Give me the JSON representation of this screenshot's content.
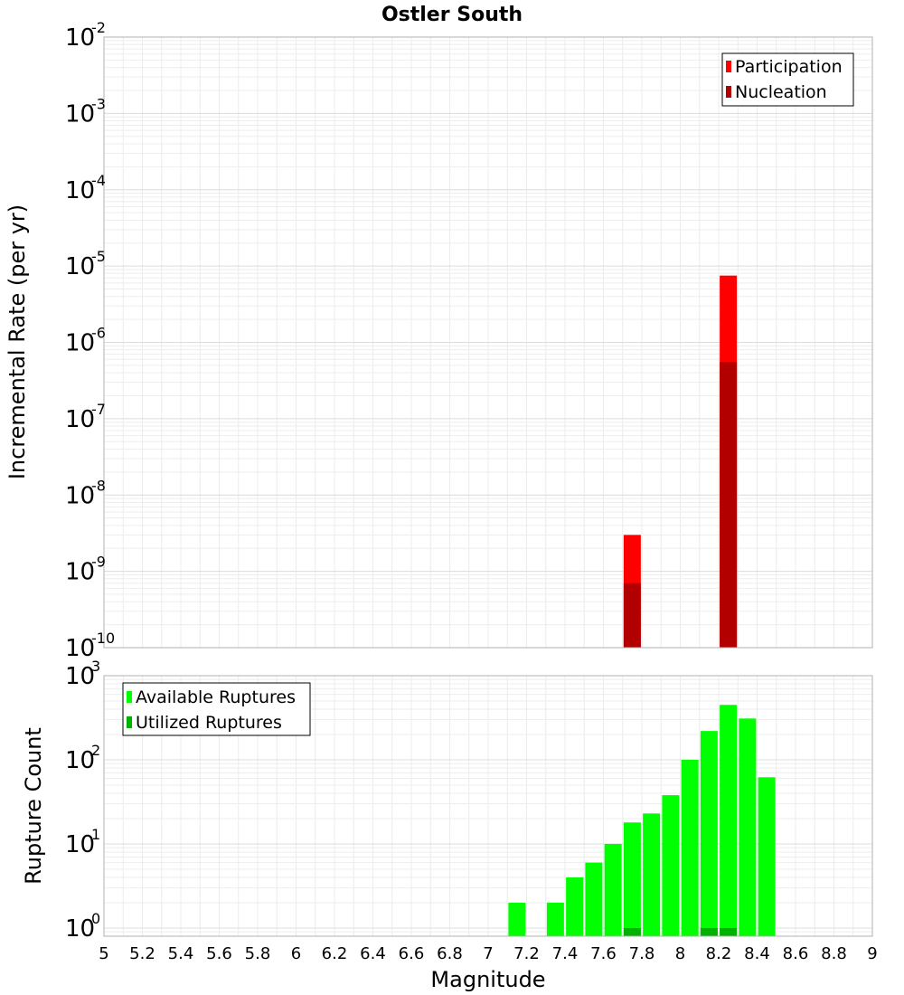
{
  "chart_data": [
    {
      "type": "bar",
      "title": "Ostler South",
      "xlabel": "",
      "ylabel": "Incremental Rate (per yr)",
      "ylim": [
        1e-10,
        0.01
      ],
      "yscale": "log",
      "xlim": [
        5,
        9
      ],
      "grid": true,
      "legend_placement": "top-right",
      "yticks": [
        {
          "base": "10",
          "exp": "-2"
        },
        {
          "base": "10",
          "exp": "-3"
        },
        {
          "base": "10",
          "exp": "-4"
        },
        {
          "base": "10",
          "exp": "-5"
        },
        {
          "base": "10",
          "exp": "-6"
        },
        {
          "base": "10",
          "exp": "-7"
        },
        {
          "base": "10",
          "exp": "-8"
        },
        {
          "base": "10",
          "exp": "-9"
        },
        {
          "base": "10",
          "exp": "-10"
        }
      ],
      "series": [
        {
          "name": "Participation",
          "color": "#ff0000",
          "x": [
            7.75,
            8.25
          ],
          "values": [
            3e-09,
            7.5e-06
          ]
        },
        {
          "name": "Nucleation",
          "color": "#b20000",
          "x": [
            7.75,
            8.25
          ],
          "values": [
            7e-10,
            5.5e-07
          ]
        }
      ]
    },
    {
      "type": "bar",
      "xlabel": "Magnitude",
      "ylabel": "Rupture Count",
      "ylim": [
        0.8,
        1000
      ],
      "yscale": "log",
      "xlim": [
        5,
        9
      ],
      "grid": true,
      "legend_placement": "top-left",
      "xticks": [
        "5",
        "5.2",
        "5.4",
        "5.6",
        "5.8",
        "6",
        "6.2",
        "6.4",
        "6.6",
        "6.8",
        "7",
        "7.2",
        "7.4",
        "7.6",
        "7.8",
        "8",
        "8.2",
        "8.4",
        "8.6",
        "8.8",
        "9"
      ],
      "yticks": [
        {
          "base": "10",
          "exp": "3"
        },
        {
          "base": "10",
          "exp": "2"
        },
        {
          "base": "10",
          "exp": "1"
        },
        {
          "base": "10",
          "exp": "0"
        }
      ],
      "series": [
        {
          "name": "Available Ruptures",
          "color": "#00ff00",
          "x": [
            7.15,
            7.35,
            7.45,
            7.55,
            7.65,
            7.75,
            7.85,
            7.95,
            8.05,
            8.15,
            8.25,
            8.35,
            8.45
          ],
          "values": [
            2,
            2,
            4,
            6,
            10,
            18,
            23,
            38,
            100,
            220,
            450,
            310,
            62
          ]
        },
        {
          "name": "Utilized Ruptures",
          "color": "#00b200",
          "x": [
            7.75,
            8.15,
            8.25
          ],
          "values": [
            1,
            1,
            1
          ]
        }
      ]
    }
  ]
}
